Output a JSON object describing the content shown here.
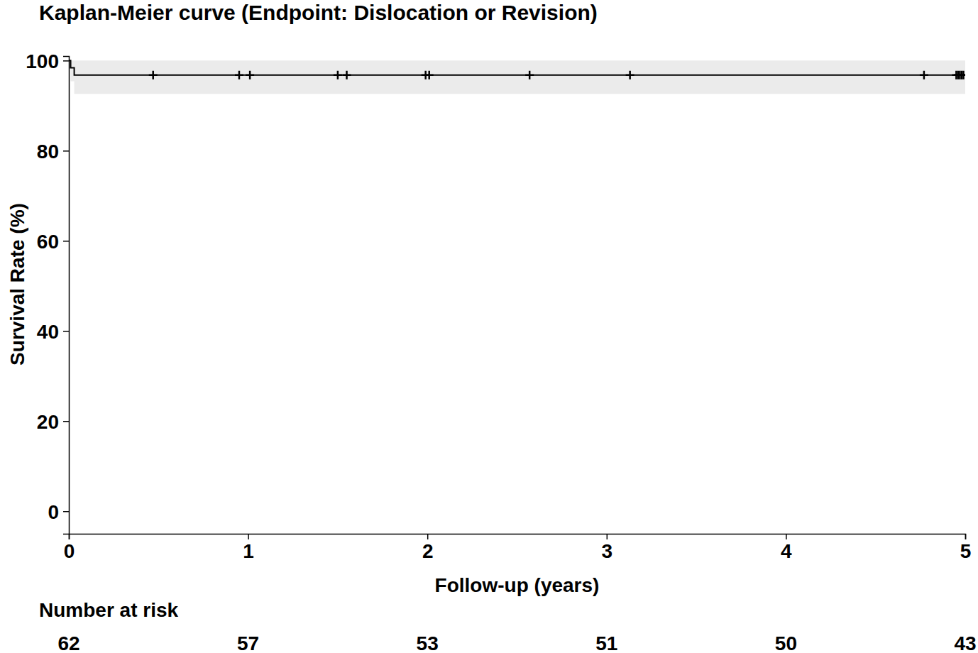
{
  "chart_data": {
    "type": "survival",
    "title": "Kaplan-Meier curve (Endpoint: Dislocation or Revision)",
    "x_label": "Follow-up (years)",
    "y_label": "Survival Rate (%)",
    "x": [
      0,
      0.01,
      0.03,
      5
    ],
    "values": [
      100,
      98.4,
      96.8,
      96.8
    ],
    "ci_lower": [
      100,
      95.4,
      92.6,
      92.6
    ],
    "ci_upper": [
      100,
      100,
      100,
      100
    ],
    "color": "#000000",
    "ci_color": "#ebebeb",
    "censored": {
      "x": [
        0.47,
        0.95,
        1.01,
        1.5,
        1.55,
        1.99,
        2.01,
        2.57,
        3.13,
        4.77,
        4.95,
        4.96,
        4.97,
        4.98,
        4.99
      ],
      "values": [
        96.8,
        96.8,
        96.8,
        96.8,
        96.8,
        96.8,
        96.8,
        96.8,
        96.8,
        96.8,
        96.8,
        96.8,
        96.8,
        96.8,
        96.8
      ]
    },
    "at_risk": {
      "label": "Number at risk",
      "x": [
        0,
        1,
        2,
        3,
        4,
        5
      ],
      "values": [
        62,
        57,
        53,
        51,
        50,
        43
      ]
    },
    "xlim": [
      0,
      5
    ],
    "ylim": [
      -5,
      101
    ],
    "xticks": [
      0,
      1,
      2,
      3,
      4,
      5
    ],
    "yticks": [
      0,
      20,
      40,
      60,
      80,
      100
    ],
    "marker": "plus",
    "line_style": "step"
  }
}
